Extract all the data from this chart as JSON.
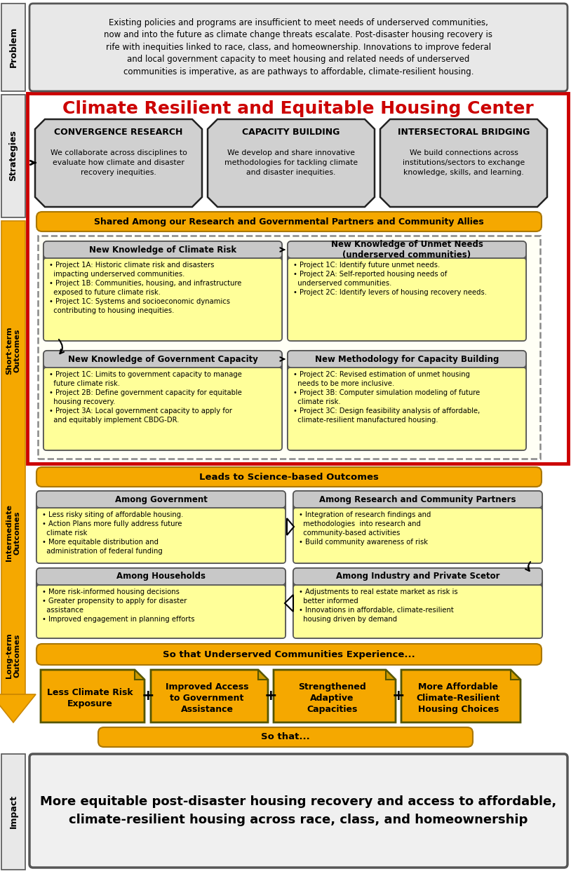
{
  "title": "Climate Resilient and Equitable Housing Center",
  "problem_text": "Existing policies and programs are insufficient to meet needs of underserved communities,\nnow and into the future as climate change threats escalate. Post-disaster housing recovery is\nrife with inequities linked to race, class, and homeownership. Innovations to improve federal\nand local government capacity to meet housing and related needs of underserved\ncommunities is imperative, as are pathways to affordable, climate-resilient housing.",
  "strategy1_title": "CONVERGENCE RESEARCH",
  "strategy1_body": "We collaborate across disciplines to\nevaluate how climate and disaster\nrecovery inequities.",
  "strategy2_title": "CAPACITY BUILDING",
  "strategy2_body": "We develop and share innovative\nmethodologies for tackling climate\nand disaster inequities.",
  "strategy3_title": "INTERSECTORAL BRIDGING",
  "strategy3_body": "We build connections across\ninstitutions/sectors to exchange\nknowledge, skills, and learning.",
  "shared_banner": "Shared Among our Research and Governmental Partners and Community Allies",
  "short_term_box1_title": "New Knowledge of Climate Risk",
  "short_term_box1_items": [
    "Project 1A: Historic climate risk and disasters\n  impacting underserved communities.",
    "Project 1B: Communities, housing, and infrastructure\n  exposed to future climate risk.",
    "Project 1C: Systems and socioeconomic dynamics\n  contributing to housing inequities."
  ],
  "short_term_box2_title": "New Knowledge of Unmet Needs\n(underserved communities)",
  "short_term_box2_items": [
    "Project 1C: Identify future unmet needs.",
    "Project 2A: Self-reported housing needs of\n  underserved communities.",
    "Project 2C: Identify levers of housing recovery needs."
  ],
  "short_term_box3_title": "New Knowledge of Government Capacity",
  "short_term_box3_items": [
    "Project 1C: Limits to government capacity to manage\n  future climate risk.",
    "Project 2B: Define government capacity for equitable\n  housing recovery.",
    "Project 3A: Local government capacity to apply for\n  and equitably implement CBDG-DR."
  ],
  "short_term_box4_title": "New Methodology for Capacity Building",
  "short_term_box4_items": [
    "Project 2C: Revised estimation of unmet housing\n  needs to be more inclusive.",
    "Project 3B: Computer simulation modeling of future\n  climate risk.",
    "Project 3C: Design feasibility analysis of affordable,\n  climate-resilient manufactured housing."
  ],
  "leads_to_banner": "Leads to Science-based Outcomes",
  "intermediate_box1_title": "Among Government",
  "intermediate_box1_items": [
    "Less risky siting of affordable housing.",
    "Action Plans more fully address future\n  climate risk",
    "More equitable distribution and\n  administration of federal funding"
  ],
  "intermediate_box2_title": "Among Research and Community Partners",
  "intermediate_box2_items": [
    "Integration of research findings and\n  methodologies  into research and\n  community-based activities",
    "Build community awareness of risk"
  ],
  "intermediate_box3_title": "Among Households",
  "intermediate_box3_items": [
    "More risk-informed housing decisions",
    "Greater propensity to apply for disaster\n  assistance",
    "Improved engagement in planning efforts"
  ],
  "intermediate_box4_title": "Among Industry and Private Scetor",
  "intermediate_box4_items": [
    "Adjustments to real estate market as risk is\n  better informed",
    "Innovations in affordable, climate-resilient\n  housing driven by demand"
  ],
  "so_that_banner": "So that Underserved Communities Experience...",
  "longterm1": "Less Climate Risk\nExposure",
  "longterm2": "Improved Access\nto Government\nAssistance",
  "longterm3": "Strengthened\nAdaptive\nCapacities",
  "longterm4": "More Affordable\nClimate-Resilient\nHousing Choices",
  "so_that2_banner": "So that...",
  "impact_text": "More equitable post-disaster housing recovery and access to affordable,\nclimate-resilient housing across race, class, and homeownership"
}
